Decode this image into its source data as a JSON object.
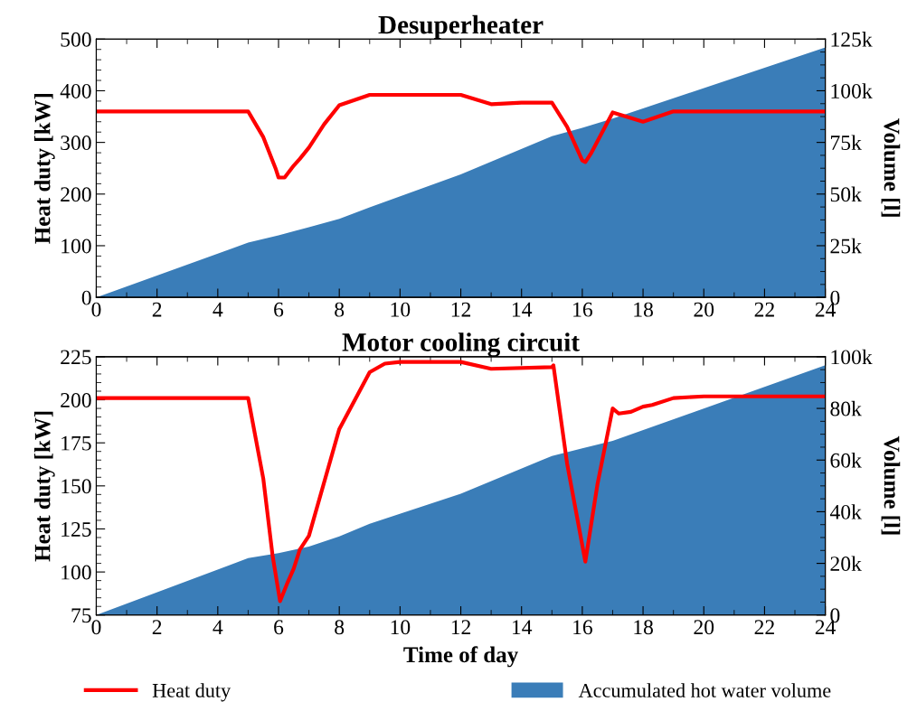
{
  "chart_data": [
    {
      "type": "line",
      "title": "Desuperheater",
      "ylabel": "Heat duty [kW]",
      "y2label": "Volume [l]",
      "xlim": [
        0,
        24
      ],
      "xticks": [
        0,
        2,
        4,
        6,
        8,
        10,
        12,
        14,
        16,
        18,
        20,
        22,
        24
      ],
      "ylim": [
        0,
        500
      ],
      "yticks": [
        0,
        100,
        200,
        300,
        400,
        500
      ],
      "y2lim": [
        0,
        125000
      ],
      "y2ticks": [
        {
          "value": 0,
          "label": "0"
        },
        {
          "value": 25000,
          "label": "25k"
        },
        {
          "value": 50000,
          "label": "50k"
        },
        {
          "value": 75000,
          "label": "75k"
        },
        {
          "value": 100000,
          "label": "100k"
        },
        {
          "value": 125000,
          "label": "125k"
        }
      ],
      "grid": false,
      "series": [
        {
          "type": "area",
          "axis": "y2",
          "color": "#3a7db8",
          "x": [
            0,
            5,
            6,
            7,
            8,
            9,
            12,
            15,
            16,
            17,
            24
          ],
          "values": [
            0,
            26500,
            30000,
            34000,
            38000,
            43600,
            59500,
            78000,
            82000,
            86500,
            121000
          ]
        },
        {
          "color": "#ff0000",
          "x": [
            0,
            5,
            5.5,
            5.8,
            5.9,
            6.0,
            6.2,
            6.5,
            6.7,
            7.0,
            7.5,
            8,
            9,
            12,
            13,
            14,
            15,
            15.5,
            16.0,
            16.1,
            16.3,
            17,
            18,
            19,
            24
          ],
          "values": [
            360,
            360,
            310,
            265,
            250,
            232,
            232,
            255,
            268,
            290,
            335,
            372,
            392,
            392,
            374,
            377,
            377,
            330,
            265,
            262,
            280,
            358,
            340,
            360,
            360
          ]
        }
      ]
    },
    {
      "type": "line",
      "title": "Motor cooling circuit",
      "xlabel": "Time of day",
      "ylabel": "Heat duty [kW]",
      "y2label": "Volume [l]",
      "xlim": [
        0,
        24
      ],
      "xticks": [
        0,
        2,
        4,
        6,
        8,
        10,
        12,
        14,
        16,
        18,
        20,
        22,
        24
      ],
      "ylim": [
        75,
        225
      ],
      "yticks": [
        75,
        100,
        125,
        150,
        175,
        200,
        225
      ],
      "y2lim": [
        0,
        100000
      ],
      "y2ticks": [
        {
          "value": 0,
          "label": "0"
        },
        {
          "value": 20000,
          "label": "20k"
        },
        {
          "value": 40000,
          "label": "40k"
        },
        {
          "value": 60000,
          "label": "60k"
        },
        {
          "value": 80000,
          "label": "80k"
        },
        {
          "value": 100000,
          "label": "100k"
        }
      ],
      "grid": false,
      "legend": "bottom",
      "series": [
        {
          "name": "Accumulated hot water volume",
          "type": "area",
          "axis": "y2",
          "color": "#3a7db8",
          "x": [
            0,
            5,
            6,
            7,
            8,
            9,
            12,
            15,
            16,
            17,
            24
          ],
          "values": [
            0,
            22000,
            24000,
            26500,
            30400,
            35300,
            47000,
            61600,
            64500,
            67400,
            96700
          ]
        },
        {
          "name": "Heat duty",
          "color": "#ff0000",
          "x": [
            0,
            5,
            5.5,
            5.8,
            6.05,
            6.3,
            6.5,
            6.7,
            7,
            8,
            9,
            9.5,
            10,
            12,
            13,
            15,
            15.05,
            15.5,
            16.1,
            16.5,
            17,
            17.2,
            17.6,
            18,
            18.3,
            19,
            20,
            24
          ],
          "values": [
            201,
            201,
            154,
            110,
            83,
            94,
            102,
            113,
            121,
            183,
            216,
            221,
            222,
            222,
            218,
            219,
            220,
            163,
            106,
            151,
            195,
            192,
            193,
            196,
            197,
            201,
            202,
            202
          ]
        }
      ]
    }
  ]
}
